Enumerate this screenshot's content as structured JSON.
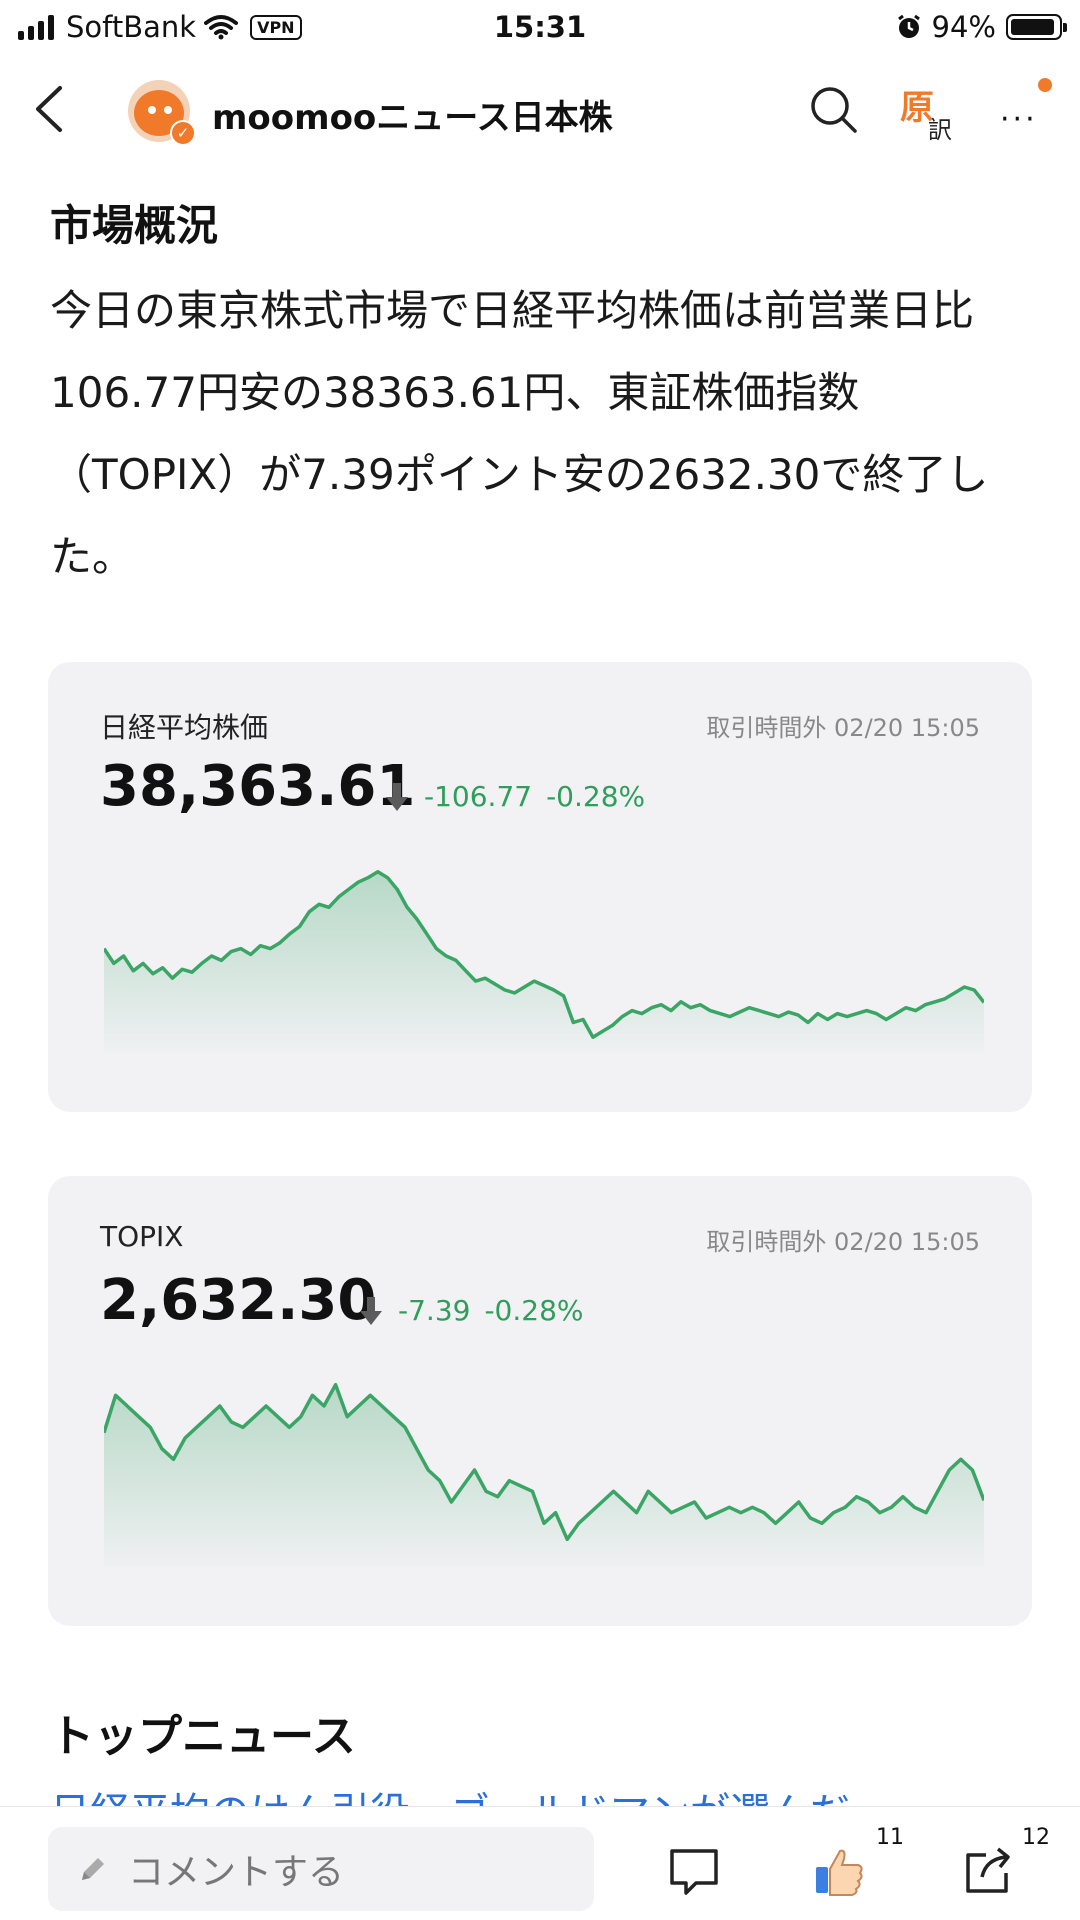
{
  "status_bar": {
    "carrier": "SoftBank",
    "vpn": "VPN",
    "time": "15:31",
    "battery": "94%",
    "battery_level": 0.94
  },
  "header": {
    "channel_name": "moomooニュース日本株",
    "translate_original": "原",
    "translate_sub": "訳",
    "more": "···"
  },
  "article": {
    "section_title": "市場概況",
    "paragraph": "今日の東京株式市場で日経平均株価は前営業日比106.77円安の38363.61円、東証株価指数（TOPIX）が7.39ポイント安の2632.30で終了した。"
  },
  "cards": [
    {
      "name": "日経平均株価",
      "status_time": "取引時間外 02/20 15:05",
      "price": "38,363.61",
      "change": "-106.77",
      "change_pct": "-0.28%"
    },
    {
      "name": "TOPIX",
      "status_time": "取引時間外 02/20 15:05",
      "price": "2,632.30",
      "change": "-7.39",
      "change_pct": "-0.28%"
    }
  ],
  "colors": {
    "down": "#2e9e5b",
    "accent": "#f07a2a",
    "link": "#2b6fd8",
    "card_bg": "#f2f2f5"
  },
  "chart_data": [
    {
      "type": "area",
      "series": [
        {
          "values": [
            38400,
            38390,
            38395,
            38385,
            38390,
            38383,
            38387,
            38380,
            38386,
            38384,
            38390,
            38395,
            38392,
            38398,
            38400,
            38396,
            38402,
            38400,
            38404,
            38410,
            38415,
            38425,
            38430,
            38428,
            38435,
            38440,
            38445,
            38448,
            38452,
            38448,
            38440,
            38428,
            38420,
            38410,
            38400,
            38395,
            38392,
            38385,
            38378,
            38380,
            38376,
            38372,
            38370,
            38374,
            38378,
            38375,
            38372,
            38368,
            38350,
            38352,
            38340,
            38344,
            38348,
            38354,
            38358,
            38356,
            38360,
            38362,
            38358,
            38364,
            38360,
            38362,
            38358,
            38356,
            38354,
            38357,
            38360,
            38358,
            38356,
            38354,
            38357,
            38355,
            38350,
            38356,
            38352,
            38356,
            38354,
            38356,
            38358,
            38356,
            38352,
            38356,
            38360,
            38358,
            38362,
            38364,
            38366,
            38370,
            38374,
            38372,
            38363.61
          ]
        }
      ],
      "ylim": [
        38330,
        38460
      ]
    },
    {
      "type": "area",
      "series": [
        {
          "values": [
            2645,
            2652,
            2650,
            2648,
            2646,
            2642,
            2640,
            2644,
            2646,
            2648,
            2650,
            2647,
            2646,
            2648,
            2650,
            2648,
            2646,
            2648,
            2652,
            2650,
            2654,
            2648,
            2650,
            2652,
            2650,
            2648,
            2646,
            2642,
            2638,
            2636,
            2632,
            2635,
            2638,
            2634,
            2633,
            2636,
            2635,
            2634,
            2628,
            2630,
            2625,
            2628,
            2630,
            2632,
            2634,
            2632,
            2630,
            2634,
            2632,
            2630,
            2631,
            2632,
            2629,
            2630,
            2631,
            2630,
            2631,
            2630,
            2628,
            2630,
            2632,
            2629,
            2628,
            2630,
            2631,
            2633,
            2632,
            2630,
            2631,
            2633,
            2631,
            2630,
            2634,
            2638,
            2640,
            2638,
            2632.3
          ]
        }
      ],
      "ylim": [
        2620,
        2656
      ]
    }
  ],
  "top_news": {
    "title": "トップニュース",
    "link_text": "日経平均のけん引役、ゴールドマンが選んだ"
  },
  "bottom_bar": {
    "comment_placeholder": "コメントする",
    "like_count": "11",
    "share_count": "12"
  }
}
